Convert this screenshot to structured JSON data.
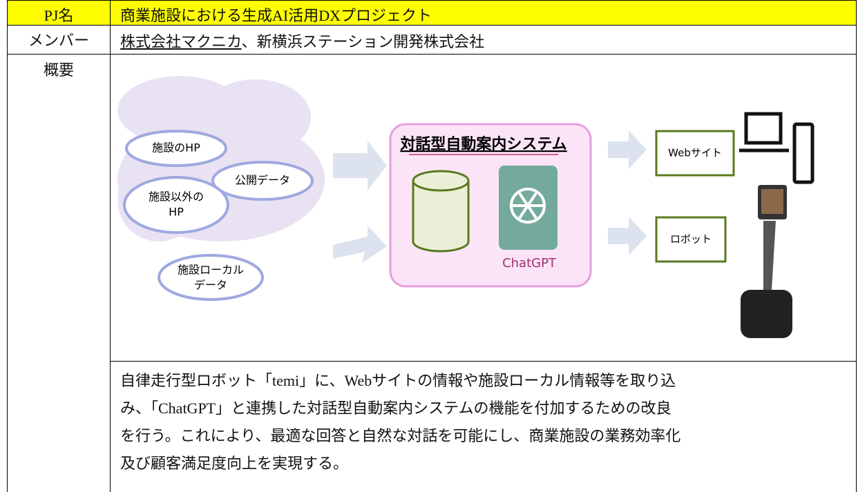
{
  "table": {
    "rows": [
      {
        "label": "PJ名",
        "content": "商業施設における生成AI活用DXプロジェクト"
      },
      {
        "label": "メンバー",
        "content_parts": [
          "株式会社マクニカ",
          "、新横浜ステーション開発株式会社"
        ]
      },
      {
        "label": "概要"
      }
    ],
    "diagram": {
      "sources": [
        "施設のHP",
        "公開データ",
        "施設以外の",
        "HP",
        "施設ローカル",
        "データ"
      ],
      "system_title": "対話型自動案内システム",
      "ai_label": "ChatGPT",
      "outputs": [
        "Webサイト",
        "ロボット"
      ]
    },
    "description_lines": [
      "自律走行型ロボット「temi」に、Webサイトの情報や施設ローカル情報等を取り込",
      "み、「ChatGPT」と連携した対話型自動案内システムの機能を付加するための改良",
      "を行う。これにより、最適な回答と自然な対話を可能にし、商業施設の業務効率化",
      "及び顧客満足度向上を実現する。"
    ]
  }
}
